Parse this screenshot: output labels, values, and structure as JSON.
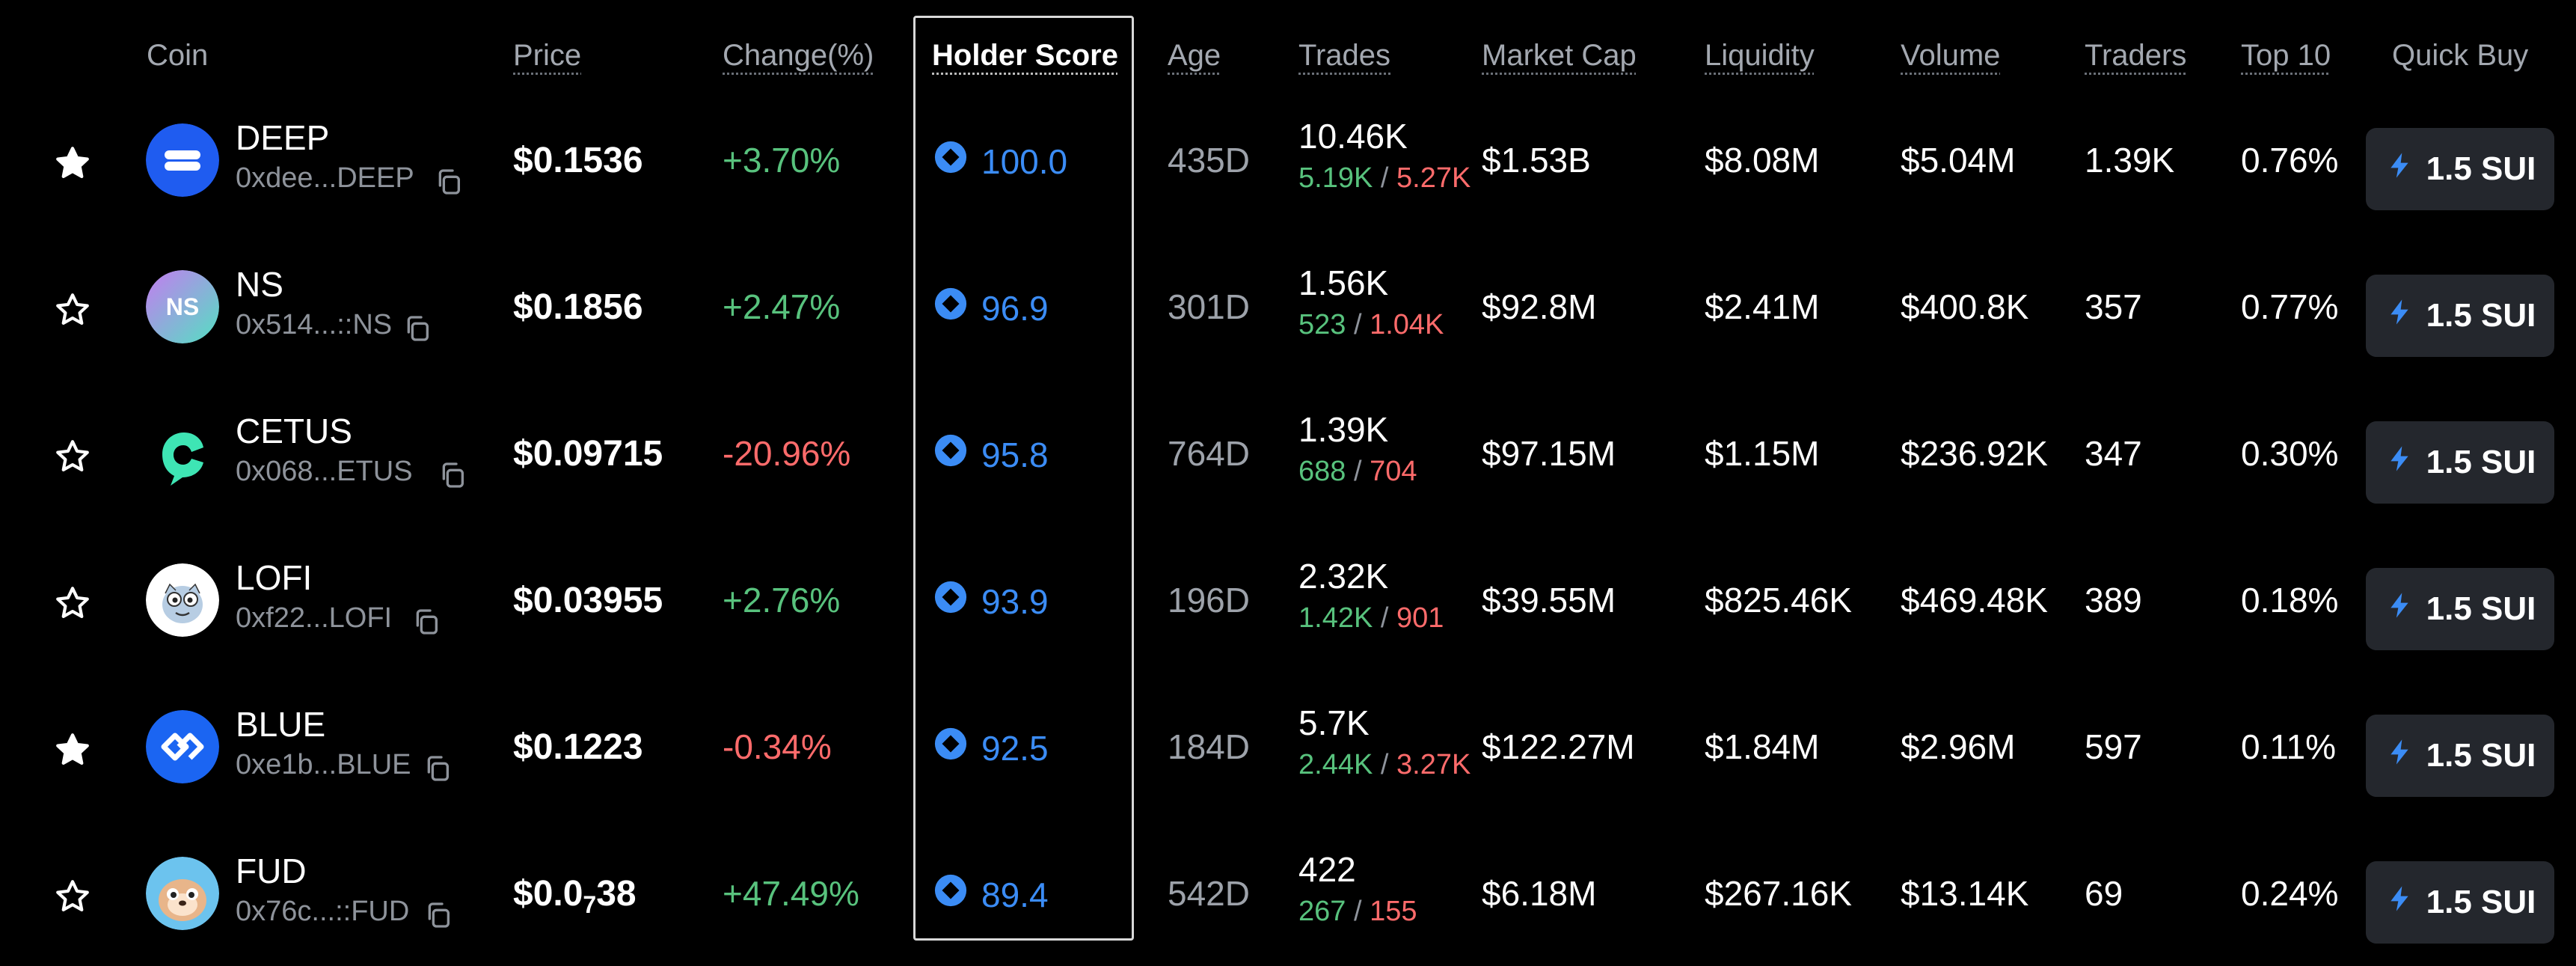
{
  "headers": {
    "coin": "Coin",
    "price": "Price",
    "change": "Change(%)",
    "holder_score": "Holder Score",
    "age": "Age",
    "trades": "Trades",
    "market_cap": "Market Cap",
    "liquidity": "Liquidity",
    "volume": "Volume",
    "traders": "Traders",
    "top10": "Top 10",
    "quick_buy": "Quick Buy"
  },
  "colors": {
    "positive": "#58c27d",
    "negative": "#ff6b6b",
    "score": "#3b8cf5",
    "button_bg": "#24272d"
  },
  "rows": [
    {
      "symbol": "DEEP",
      "address": "0xdee...DEEP",
      "price": "$0.1536",
      "change": "+3.70%",
      "change_dir": "pos",
      "score": "100.0",
      "age": "435D",
      "trades": "10.46K",
      "buys": "5.19K",
      "sep": "/",
      "sells": "5.27K",
      "market_cap": "$1.53B",
      "liquidity": "$8.08M",
      "volume": "$5.04M",
      "traders": "1.39K",
      "top10": "0.76%",
      "quick_buy": "1.5 SUI",
      "favorited": true,
      "avatar": "deep"
    },
    {
      "symbol": "NS",
      "address": "0x514...::NS",
      "price": "$0.1856",
      "change": "+2.47%",
      "change_dir": "pos",
      "score": "96.9",
      "age": "301D",
      "trades": "1.56K",
      "buys": "523",
      "sep": "/",
      "sells": "1.04K",
      "market_cap": "$92.8M",
      "liquidity": "$2.41M",
      "volume": "$400.8K",
      "traders": "357",
      "top10": "0.77%",
      "quick_buy": "1.5 SUI",
      "favorited": false,
      "avatar": "ns",
      "avatar_text": "NS"
    },
    {
      "symbol": "CETUS",
      "address": "0x068...ETUS",
      "price": "$0.09715",
      "change": "-20.96%",
      "change_dir": "neg",
      "score": "95.8",
      "age": "764D",
      "trades": "1.39K",
      "buys": "688",
      "sep": "/",
      "sells": "704",
      "market_cap": "$97.15M",
      "liquidity": "$1.15M",
      "volume": "$236.92K",
      "traders": "347",
      "top10": "0.30%",
      "quick_buy": "1.5 SUI",
      "favorited": false,
      "avatar": "cetus"
    },
    {
      "symbol": "LOFI",
      "address": "0xf22...LOFI",
      "price": "$0.03955",
      "change": "+2.76%",
      "change_dir": "pos",
      "score": "93.9",
      "age": "196D",
      "trades": "2.32K",
      "buys": "1.42K",
      "sep": "/",
      "sells": "901",
      "market_cap": "$39.55M",
      "liquidity": "$825.46K",
      "volume": "$469.48K",
      "traders": "389",
      "top10": "0.18%",
      "quick_buy": "1.5 SUI",
      "favorited": false,
      "avatar": "lofi"
    },
    {
      "symbol": "BLUE",
      "address": "0xe1b...BLUE",
      "price": "$0.1223",
      "change": "-0.34%",
      "change_dir": "neg",
      "score": "92.5",
      "age": "184D",
      "trades": "5.7K",
      "buys": "2.44K",
      "sep": "/",
      "sells": "3.27K",
      "market_cap": "$122.27M",
      "liquidity": "$1.84M",
      "volume": "$2.96M",
      "traders": "597",
      "top10": "0.11%",
      "quick_buy": "1.5 SUI",
      "favorited": true,
      "avatar": "blue"
    },
    {
      "symbol": "FUD",
      "address": "0x76c...::FUD",
      "price_main": "$0.0",
      "price_sub": "7",
      "price_tail": "38",
      "change": "+47.49%",
      "change_dir": "pos",
      "score": "89.4",
      "age": "542D",
      "trades": "422",
      "buys": "267",
      "sep": "/",
      "sells": "155",
      "market_cap": "$6.18M",
      "liquidity": "$267.16K",
      "volume": "$13.14K",
      "traders": "69",
      "top10": "0.24%",
      "quick_buy": "1.5 SUI",
      "favorited": false,
      "avatar": "fud"
    }
  ]
}
